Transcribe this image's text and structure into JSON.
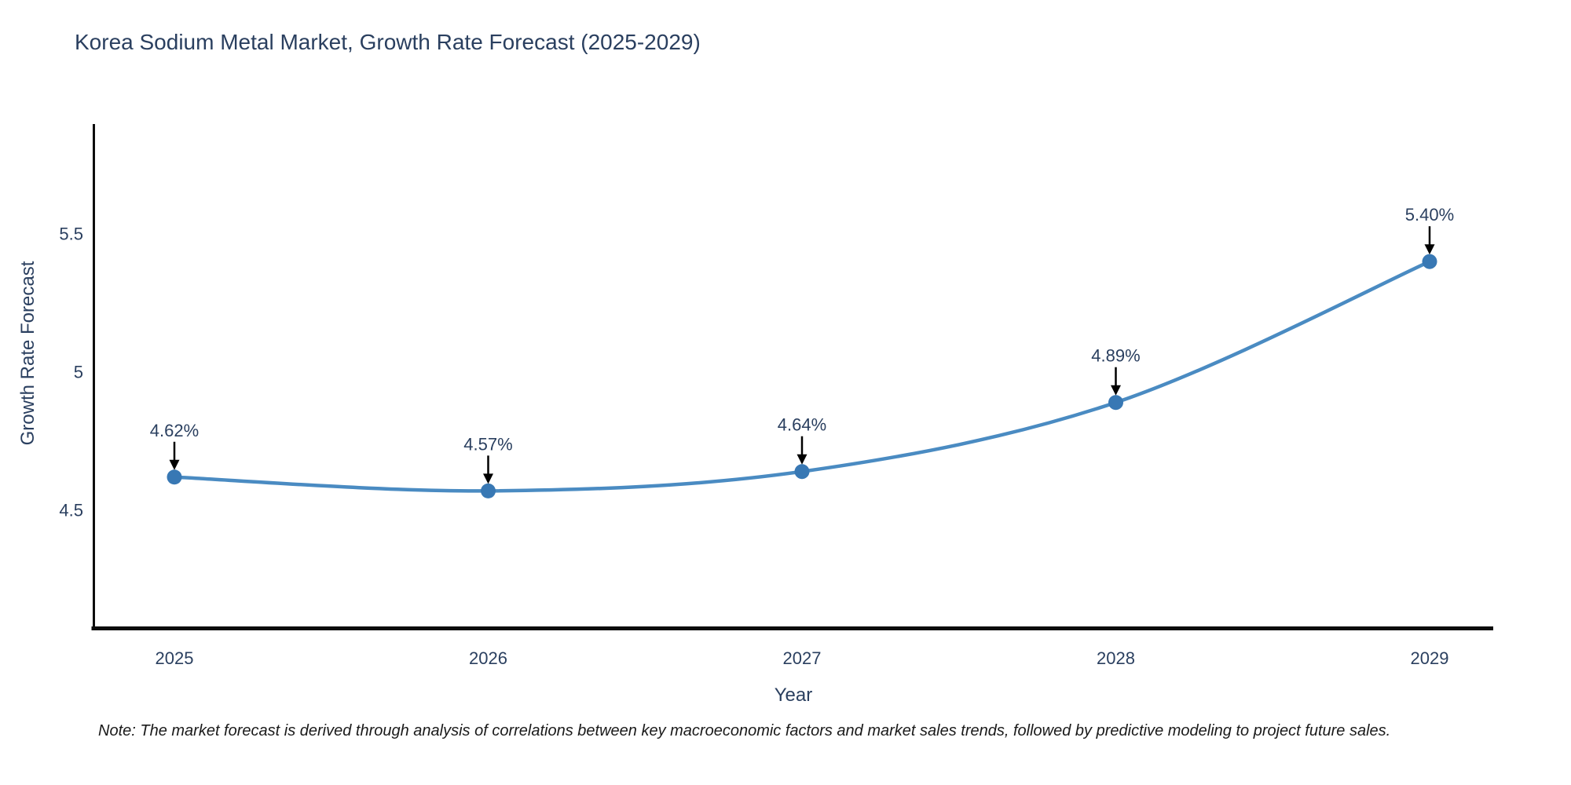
{
  "chart_data": {
    "type": "line",
    "title": "Korea Sodium Metal Market, Growth Rate Forecast (2025-2029)",
    "xlabel": "Year",
    "ylabel": "Growth Rate Forecast",
    "x": [
      2025,
      2026,
      2027,
      2028,
      2029
    ],
    "x_tick_labels": [
      "2025",
      "2026",
      "2027",
      "2028",
      "2029"
    ],
    "values": [
      4.62,
      4.57,
      4.64,
      4.89,
      5.4
    ],
    "point_labels": [
      "4.62%",
      "4.57%",
      "4.64%",
      "4.89%",
      "5.40%"
    ],
    "yticks": [
      4.5,
      5,
      5.5
    ],
    "ytick_labels": [
      "4.5",
      "5",
      "5.5"
    ],
    "ylim": [
      4.28,
      5.92
    ],
    "grid": false,
    "legend_position": "none",
    "line_shape": "spline",
    "annotation_style": "label-with-down-arrow"
  },
  "note": "Note: The market forecast is derived through analysis of correlations between key macroeconomic factors and market sales trends, followed by predictive modeling to project future sales.",
  "colors": {
    "line": "#4a8bc2",
    "marker": "#3878b4",
    "arrow": "#000000",
    "axis": "#0d0d0d",
    "text": "#2a3f5f",
    "background": "#ffffff"
  }
}
